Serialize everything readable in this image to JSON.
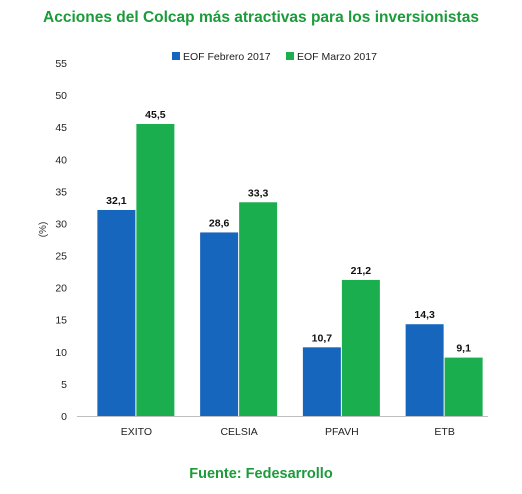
{
  "title": "Acciones del Colcap más atractivas para los inversionistas",
  "source": "Fuente: Fedesarrollo",
  "colors": {
    "series_1": "#1766bd",
    "series_2": "#1bae4f",
    "title": "#1b9b3a"
  },
  "chart_data": {
    "type": "bar",
    "title": "Acciones del Colcap más atractivas para los inversionistas",
    "xlabel": "",
    "ylabel": "(%)",
    "categories": [
      "EXITO",
      "CELSIA",
      "PFAVH",
      "ETB"
    ],
    "series": [
      {
        "name": "EOF Febrero 2017",
        "values": [
          32.1,
          28.6,
          10.7,
          14.3
        ],
        "labels": [
          "32,1",
          "28,6",
          "10,7",
          "14,3"
        ]
      },
      {
        "name": "EOF Marzo 2017",
        "values": [
          45.5,
          33.3,
          21.2,
          9.1
        ],
        "labels": [
          "45,5",
          "33,3",
          "21,2",
          "9,1"
        ]
      }
    ],
    "ylim": [
      0,
      55
    ],
    "yticks": [
      0,
      5,
      10,
      15,
      20,
      25,
      30,
      35,
      40,
      45,
      50,
      55
    ],
    "grid": false,
    "legend_position": "top"
  }
}
